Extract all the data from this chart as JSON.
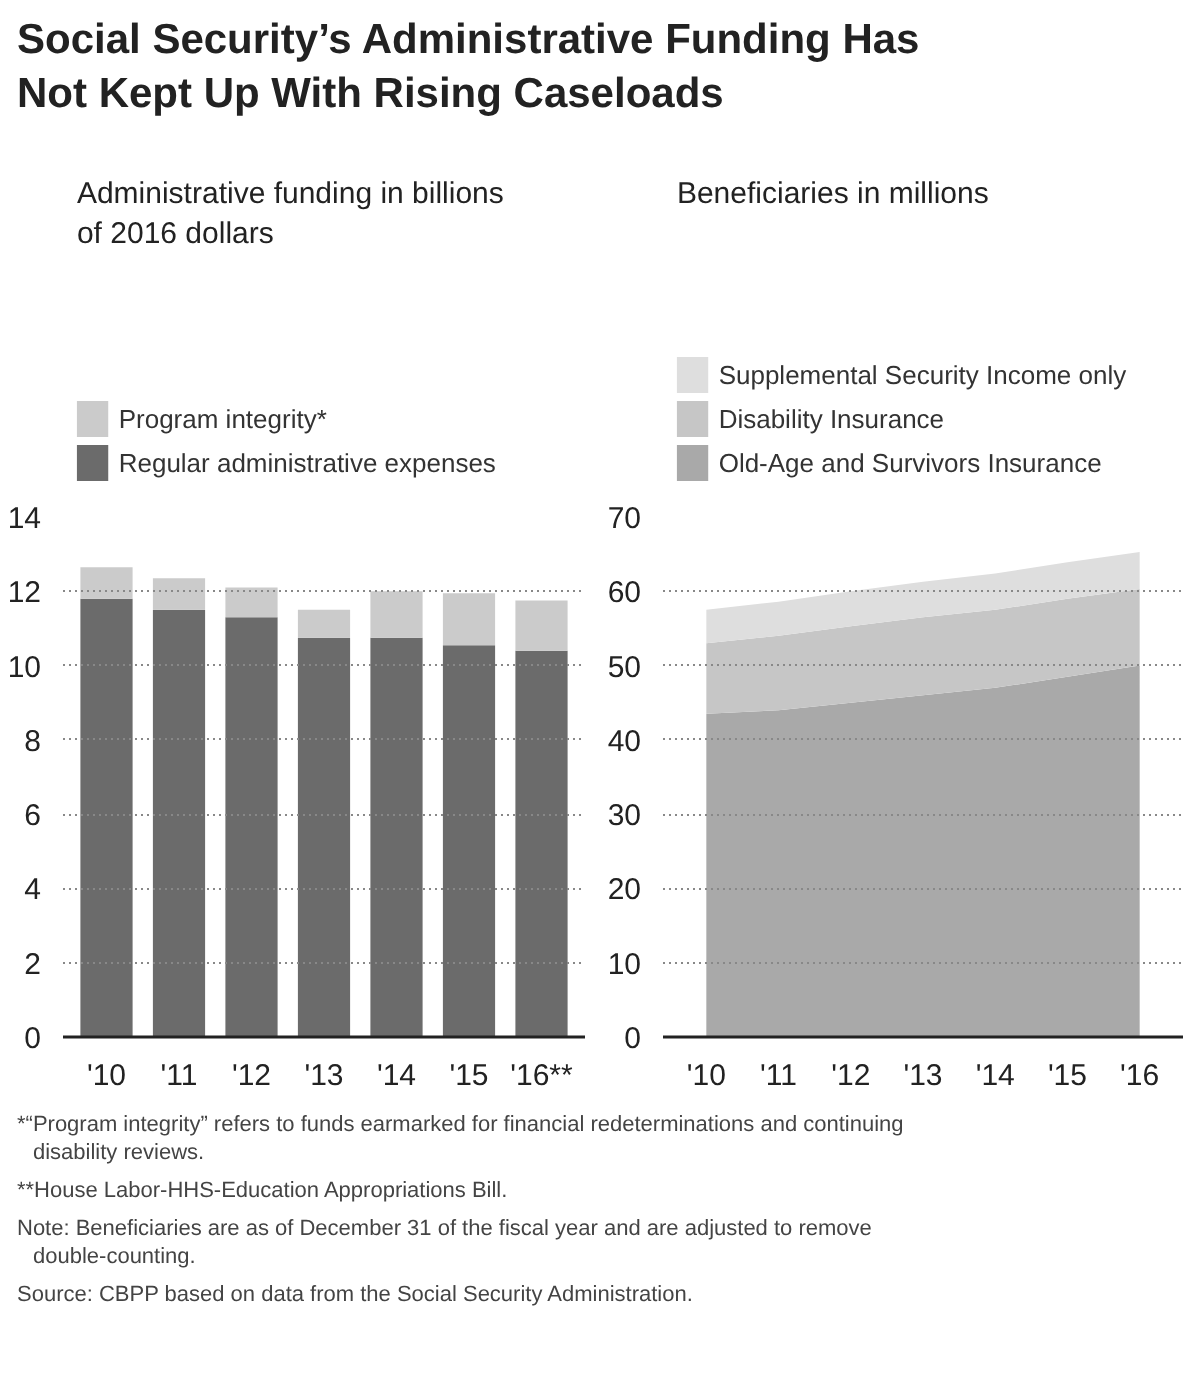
{
  "chart_data": [
    {
      "type": "bar",
      "title": "Social Security’s Administrative Funding Has Not Kept Up With Rising Caseloads",
      "subtitle": "Administrative funding in billions of 2016 dollars",
      "stacked": true,
      "categories": [
        "'10",
        "'11",
        "'12",
        "'13",
        "'14",
        "'15",
        "'16**"
      ],
      "series": [
        {
          "name": "Regular administrative expenses",
          "color": "#6b6b6b",
          "values": [
            11.8,
            11.5,
            11.3,
            10.75,
            10.75,
            10.55,
            10.4
          ]
        },
        {
          "name": "Program integrity*",
          "color": "#cbcbcb",
          "values": [
            0.85,
            0.85,
            0.8,
            0.75,
            1.25,
            1.4,
            1.35
          ]
        }
      ],
      "ylim": [
        0,
        14
      ],
      "yticks": [
        0,
        2,
        4,
        6,
        8,
        10,
        12,
        14
      ],
      "grid": "y",
      "legend": "top",
      "annotations": [
        "*“Program integrity” refers to funds earmarked for financial redeterminations and continuing disability reviews.",
        "**House Labor-HHS-Education Appropriations Bill.",
        "Note: Beneficiaries are as of December 31 of the fiscal year and are adjusted to remove double-counting.",
        "Source: CBPP based on data from the Social Security Administration."
      ]
    },
    {
      "type": "area",
      "subtitle": "Beneficiaries in millions",
      "stacked": true,
      "categories": [
        "'10",
        "'11",
        "'12",
        "'13",
        "'14",
        "'15",
        "'16"
      ],
      "series": [
        {
          "name": "Old-Age and Survivors Insurance",
          "color": "#a9a9a9",
          "values": [
            43.5,
            44,
            45,
            46,
            47,
            48.5,
            50
          ]
        },
        {
          "name": "Disability Insurance",
          "color": "#c6c6c6",
          "values": [
            9.5,
            10,
            10.3,
            10.5,
            10.5,
            10.5,
            10.3
          ]
        },
        {
          "name": "Supplemental Security Income only",
          "color": "#dedede",
          "values": [
            4.5,
            4.6,
            4.7,
            4.8,
            4.9,
            4.9,
            5.0
          ]
        }
      ],
      "ylim": [
        0,
        70
      ],
      "yticks": [
        0,
        10,
        20,
        30,
        40,
        50,
        60,
        70
      ],
      "grid": "y",
      "legend": "top"
    }
  ]
}
